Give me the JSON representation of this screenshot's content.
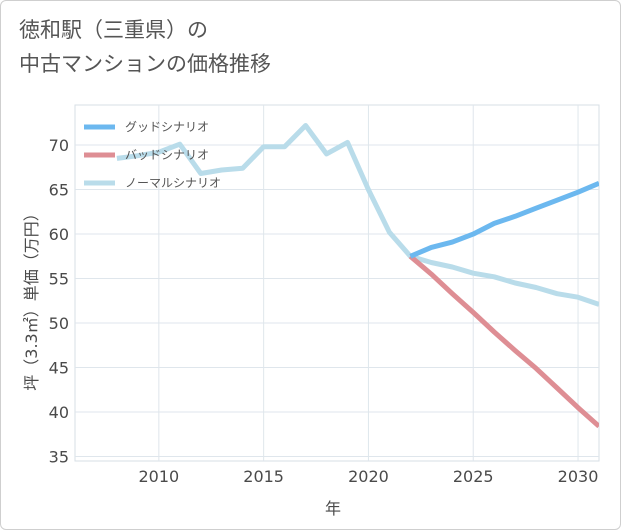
{
  "title_lines": [
    "徳和駅（三重県）の",
    "中古マンションの価格推移"
  ],
  "chart_data": {
    "type": "line",
    "title": "徳和駅（三重県）の中古マンションの価格推移",
    "xlabel": "年",
    "ylabel": "坪（3.3㎡）単価（万円）",
    "xlim": [
      2006,
      2031
    ],
    "ylim": [
      34.5,
      74.5
    ],
    "xticks": [
      2010,
      2015,
      2020,
      2025,
      2030
    ],
    "yticks": [
      35,
      40,
      45,
      50,
      55,
      60,
      65,
      70
    ],
    "grid": true,
    "legend_position": "top-left",
    "series": [
      {
        "name": "グッドシナリオ",
        "color": "#6cb8ef",
        "x": [
          2022,
          2023,
          2024,
          2025,
          2026,
          2027,
          2028,
          2029,
          2030,
          2031
        ],
        "y": [
          57.5,
          58.5,
          59.1,
          60.0,
          61.2,
          62.0,
          62.9,
          63.8,
          64.7,
          65.7
        ]
      },
      {
        "name": "バッドシナリオ",
        "color": "#de8e94",
        "x": [
          2022,
          2023,
          2024,
          2025,
          2026,
          2027,
          2028,
          2029,
          2030,
          2031
        ],
        "y": [
          57.5,
          55.5,
          53.3,
          51.2,
          49.0,
          46.9,
          44.9,
          42.7,
          40.5,
          38.4
        ]
      },
      {
        "name": "ノーマルシナリオ",
        "color": "#b9dcea",
        "x": [
          2008,
          2009,
          2010,
          2011,
          2012,
          2013,
          2014,
          2015,
          2016,
          2017,
          2018,
          2019,
          2020,
          2021,
          2022,
          2023,
          2024,
          2025,
          2026,
          2027,
          2028,
          2029,
          2030,
          2031
        ],
        "y": [
          68.5,
          68.8,
          69.2,
          70.1,
          66.8,
          67.2,
          67.4,
          69.8,
          69.8,
          72.2,
          69.0,
          70.3,
          65.0,
          60.2,
          57.5,
          56.8,
          56.3,
          55.6,
          55.2,
          54.5,
          54.0,
          53.3,
          52.9,
          52.1
        ]
      }
    ]
  }
}
